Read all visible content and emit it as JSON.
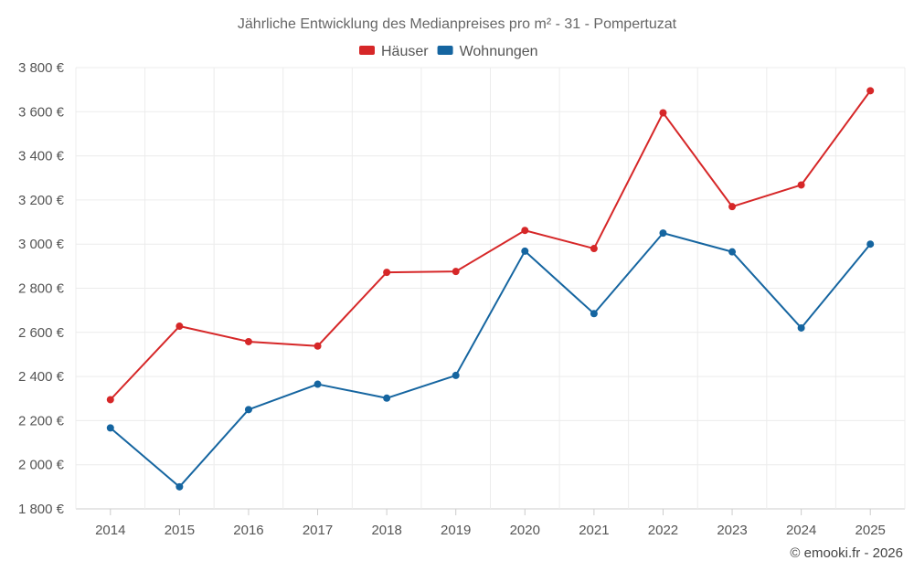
{
  "chart_data": {
    "type": "line",
    "title": "Jährliche Entwicklung des Medianpreises pro m² - 31 - Pompertuzat",
    "categories": [
      "2014",
      "2015",
      "2016",
      "2017",
      "2018",
      "2019",
      "2020",
      "2021",
      "2022",
      "2023",
      "2024",
      "2025"
    ],
    "series": [
      {
        "name": "Häuser",
        "color": "#d62728",
        "values": [
          2295,
          2628,
          2558,
          2538,
          2872,
          2876,
          3062,
          2980,
          3595,
          3170,
          3268,
          3695
        ]
      },
      {
        "name": "Wohnungen",
        "color": "#1565a0",
        "values": [
          2167,
          1900,
          2250,
          2365,
          2302,
          2405,
          2968,
          2685,
          3050,
          2965,
          2620,
          3000
        ]
      }
    ],
    "ylim": [
      1800,
      3800
    ],
    "yticks": [
      1800,
      2000,
      2200,
      2400,
      2600,
      2800,
      3000,
      3200,
      3400,
      3600,
      3800
    ],
    "ytick_labels": [
      "1 800 €",
      "2 000 €",
      "2 200 €",
      "2 400 €",
      "2 600 €",
      "2 800 €",
      "3 000 €",
      "3 200 €",
      "3 400 €",
      "3 600 €",
      "3 800 €"
    ],
    "xlabel": "",
    "ylabel": "",
    "grid": true,
    "legend_position": "top-center"
  },
  "credit": "© emooki.fr - 2026"
}
